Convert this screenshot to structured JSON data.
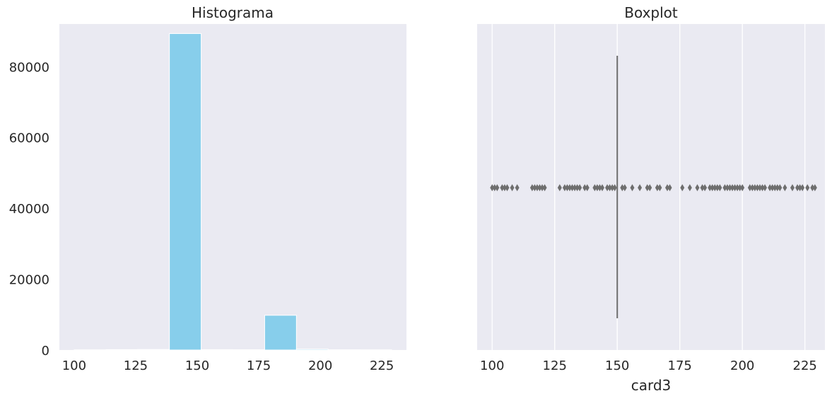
{
  "chart_data": [
    {
      "type": "bar",
      "title": "Histograma",
      "xlabel": "",
      "ylabel": "",
      "xlim": [
        94,
        235
      ],
      "ylim": [
        0,
        92000
      ],
      "xticks": [
        100,
        125,
        150,
        175,
        200,
        225
      ],
      "yticks": [
        0,
        20000,
        40000,
        60000,
        80000
      ],
      "grid": false,
      "bar_color": "#87ceeb",
      "bins": [
        {
          "x0": 100.0,
          "x1": 112.9,
          "value": 60
        },
        {
          "x0": 112.9,
          "x1": 125.8,
          "value": 120
        },
        {
          "x0": 125.8,
          "x1": 138.7,
          "value": 150
        },
        {
          "x0": 138.7,
          "x1": 151.6,
          "value": 89300
        },
        {
          "x0": 151.6,
          "x1": 164.5,
          "value": 110
        },
        {
          "x0": 164.5,
          "x1": 177.4,
          "value": 90
        },
        {
          "x0": 177.4,
          "x1": 190.3,
          "value": 9800
        },
        {
          "x0": 190.3,
          "x1": 203.2,
          "value": 250
        },
        {
          "x0": 203.2,
          "x1": 216.1,
          "value": 80
        },
        {
          "x0": 216.1,
          "x1": 229.0,
          "value": 60
        }
      ]
    },
    {
      "type": "boxplot",
      "title": "Boxplot",
      "xlabel": "card3",
      "xlim": [
        94,
        233
      ],
      "xticks": [
        100,
        125,
        150,
        175,
        200,
        225
      ],
      "grid": true,
      "box": {
        "q1": 150,
        "median": 150,
        "q3": 150,
        "whisker_low": 150,
        "whisker_high": 150
      },
      "line_color": "#6e6e6e",
      "outlier_color": "#6e6e6e",
      "outliers": [
        100,
        101,
        102,
        104,
        105,
        106,
        108,
        110,
        116,
        117,
        118,
        119,
        120,
        121,
        127,
        129,
        130,
        131,
        132,
        133,
        134,
        135,
        137,
        138,
        141,
        142,
        143,
        144,
        146,
        147,
        148,
        149,
        152,
        153,
        156,
        159,
        162,
        163,
        166,
        167,
        170,
        171,
        176,
        179,
        182,
        184,
        185,
        187,
        188,
        189,
        190,
        191,
        193,
        194,
        195,
        196,
        197,
        198,
        199,
        200,
        203,
        204,
        205,
        206,
        207,
        208,
        209,
        211,
        212,
        213,
        214,
        215,
        217,
        220,
        222,
        223,
        224,
        226,
        228,
        229
      ]
    }
  ]
}
